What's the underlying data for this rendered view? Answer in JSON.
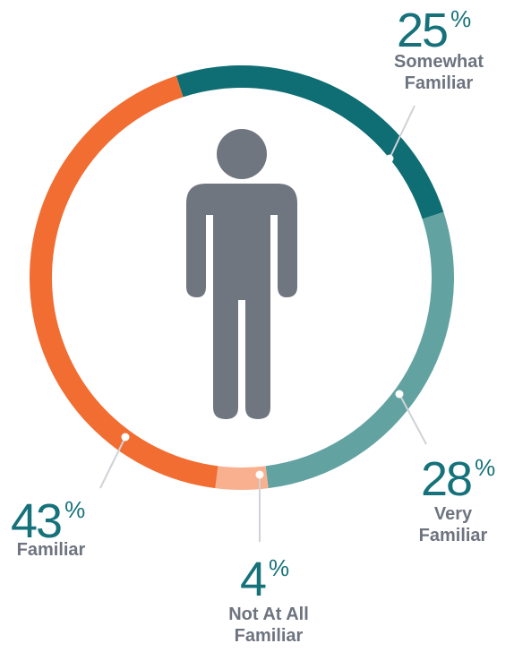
{
  "chart_data": {
    "type": "donut",
    "categories": [
      "Somewhat Familiar",
      "Very Familiar",
      "Not At All Familiar",
      "Familiar"
    ],
    "values": [
      25,
      28,
      4,
      43
    ],
    "value_labels": [
      "25%",
      "28%",
      "4%",
      "43%"
    ],
    "colors": [
      "#0f6e74",
      "#62a3a2",
      "#f9b08f",
      "#f26d32"
    ]
  }
}
